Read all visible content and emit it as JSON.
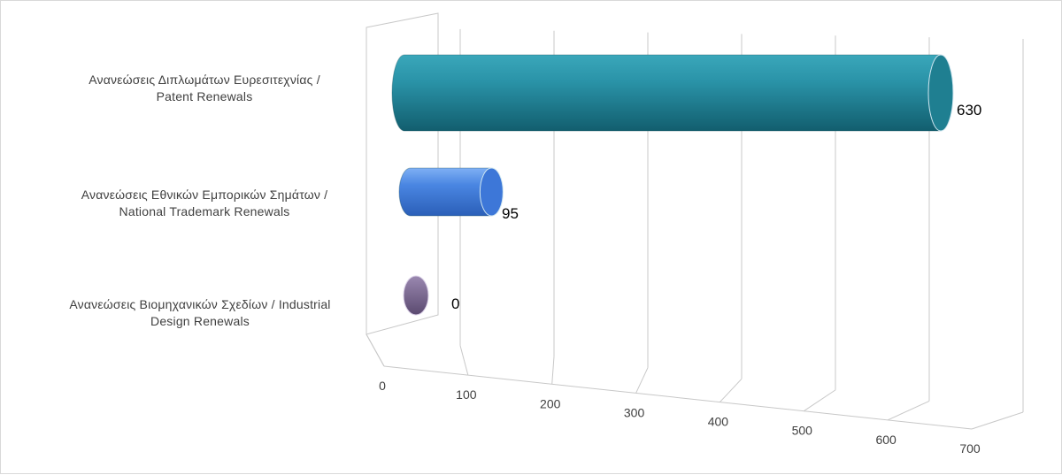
{
  "chart_data": {
    "type": "bar",
    "orientation": "horizontal",
    "style": "3d-cylinder",
    "categories": [
      [
        "Ανανεώσεις Διπλωμάτων Ευρεσιτεχνίας /",
        "Patent Renewals"
      ],
      [
        "Ανανεώσεις Εθνικών Εμπορικών Σημάτων /",
        "National Trademark Renewals"
      ],
      [
        "Ανανεώσεις Βιομηχανικών Σχεδίων  / Industrial",
        "Design Renewals"
      ]
    ],
    "values": [
      630,
      95,
      0
    ],
    "data_labels": [
      "630",
      "95",
      "0"
    ],
    "colors": [
      "#1f7f91",
      "#3d77d8",
      "#6f5c85"
    ],
    "xlim": [
      0,
      700
    ],
    "x_ticks": [
      "0",
      "100",
      "200",
      "300",
      "400",
      "500",
      "600",
      "700"
    ],
    "grid": true,
    "legend": "none"
  }
}
